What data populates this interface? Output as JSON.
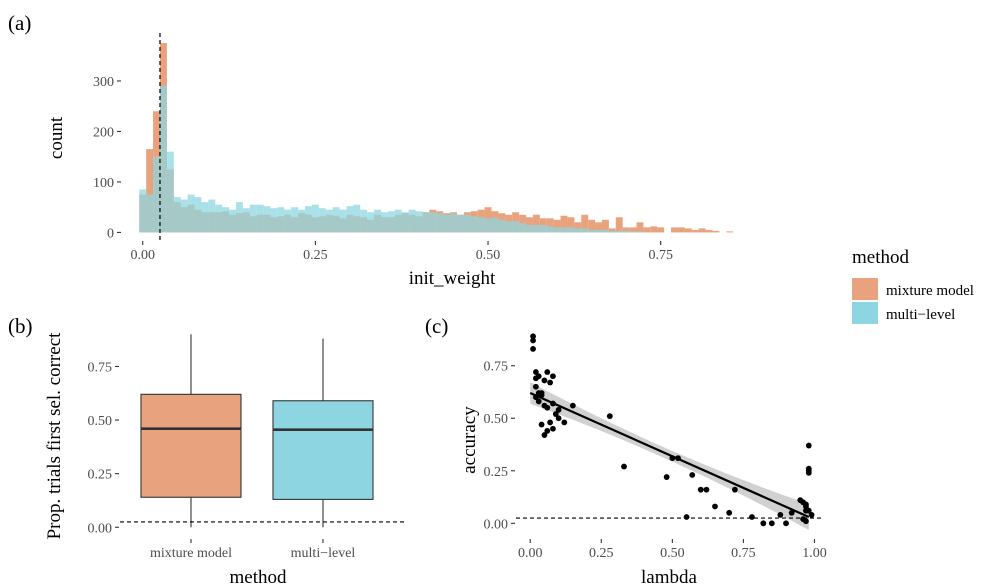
{
  "legend": {
    "title": "method",
    "items": [
      {
        "label": "mixture model",
        "color": "#E8A27E"
      },
      {
        "label": "multi−level",
        "color": "#8DD5E0"
      }
    ]
  },
  "chart_data": [
    {
      "panel": "(a)",
      "type": "histogram",
      "xlabel": "init_weight",
      "ylabel": "count",
      "xlim": [
        -0.03,
        0.93
      ],
      "ylim": [
        -15,
        395
      ],
      "xticks": [
        0.0,
        0.25,
        0.5,
        0.75
      ],
      "xtick_labels": [
        "0.00",
        "0.25",
        "0.50",
        "0.75"
      ],
      "yticks": [
        0,
        100,
        200,
        300
      ],
      "ytick_labels": [
        "0",
        "100",
        "200",
        "300"
      ],
      "bin_start": -0.005,
      "bin_width": 0.01,
      "reference_line_x": 0.025,
      "series": [
        {
          "name": "mixture model",
          "values": [
            75,
            165,
            240,
            375,
            125,
            60,
            50,
            55,
            45,
            40,
            40,
            40,
            42,
            35,
            38,
            40,
            32,
            35,
            35,
            30,
            32,
            35,
            30,
            38,
            35,
            30,
            32,
            35,
            33,
            28,
            35,
            32,
            30,
            25,
            35,
            30,
            30,
            35,
            38,
            35,
            32,
            40,
            45,
            42,
            38,
            40,
            35,
            40,
            42,
            45,
            50,
            42,
            38,
            35,
            40,
            35,
            30,
            35,
            28,
            28,
            25,
            33,
            30,
            20,
            35,
            25,
            20,
            25,
            8,
            30,
            10,
            10,
            20,
            10,
            12,
            10,
            0,
            10,
            10,
            8,
            5,
            8,
            5,
            3,
            0,
            2,
            0,
            0,
            0,
            0,
            0,
            0,
            0,
            0
          ]
        },
        {
          "name": "multi−level",
          "values": [
            85,
            75,
            150,
            290,
            160,
            70,
            65,
            75,
            70,
            60,
            65,
            55,
            50,
            45,
            60,
            48,
            55,
            55,
            52,
            48,
            50,
            45,
            50,
            45,
            52,
            55,
            48,
            45,
            50,
            45,
            52,
            55,
            45,
            40,
            45,
            40,
            42,
            45,
            40,
            45,
            42,
            40,
            40,
            38,
            35,
            38,
            35,
            35,
            32,
            30,
            28,
            30,
            25,
            22,
            22,
            18,
            15,
            15,
            15,
            12,
            10,
            10,
            10,
            8,
            8,
            5,
            5,
            5,
            3,
            3,
            3,
            2,
            2,
            0,
            0,
            0,
            0,
            0,
            0,
            0,
            0,
            0,
            0,
            0,
            0,
            0,
            0,
            0,
            0,
            0,
            0,
            0,
            0,
            0
          ]
        }
      ]
    },
    {
      "panel": "(b)",
      "type": "boxplot",
      "xlabel": "method",
      "ylabel": "Prop. trials first sel. correct",
      "ylim": [
        -0.05,
        0.92
      ],
      "yticks": [
        0.0,
        0.25,
        0.5,
        0.75
      ],
      "ytick_labels": [
        "0.00",
        "0.25",
        "0.50",
        "0.75"
      ],
      "categories": [
        "mixture model",
        "multi−level"
      ],
      "boxes": [
        {
          "name": "mixture model",
          "min": 0.0,
          "q1": 0.14,
          "median": 0.46,
          "q3": 0.62,
          "max": 0.9
        },
        {
          "name": "multi−level",
          "min": 0.0,
          "q1": 0.13,
          "median": 0.455,
          "q3": 0.59,
          "max": 0.88
        }
      ],
      "reference_line_y": 0.025
    },
    {
      "panel": "(c)",
      "type": "scatter",
      "xlabel": "lambda",
      "ylabel": "accuracy",
      "xlim": [
        -0.05,
        1.03
      ],
      "ylim": [
        -0.07,
        0.92
      ],
      "xticks": [
        0.0,
        0.25,
        0.5,
        0.75,
        1.0
      ],
      "xtick_labels": [
        "0.00",
        "0.25",
        "0.50",
        "0.75",
        "1.00"
      ],
      "yticks": [
        0.0,
        0.25,
        0.5,
        0.75
      ],
      "ytick_labels": [
        "0.00",
        "0.25",
        "0.50",
        "0.75"
      ],
      "reference_line_y": 0.025,
      "fit_line": {
        "x": [
          0.0,
          0.98
        ],
        "y": [
          0.62,
          0.03
        ]
      },
      "points": {
        "x": [
          0.01,
          0.01,
          0.01,
          0.02,
          0.02,
          0.03,
          0.02,
          0.03,
          0.04,
          0.05,
          0.06,
          0.07,
          0.04,
          0.08,
          0.02,
          0.03,
          0.05,
          0.06,
          0.07,
          0.08,
          0.1,
          0.09,
          0.12,
          0.04,
          0.05,
          0.06,
          0.08,
          0.1,
          0.15,
          0.28,
          0.33,
          0.48,
          0.52,
          0.55,
          0.5,
          0.57,
          0.6,
          0.62,
          0.65,
          0.7,
          0.72,
          0.78,
          0.82,
          0.85,
          0.88,
          0.9,
          0.92,
          0.95,
          0.96,
          0.97,
          0.97,
          0.98,
          0.98,
          0.98,
          0.97,
          0.99,
          0.98,
          0.96,
          0.97,
          0.98
        ],
        "y": [
          0.89,
          0.87,
          0.83,
          0.72,
          0.69,
          0.7,
          0.65,
          0.62,
          0.61,
          0.68,
          0.72,
          0.67,
          0.62,
          0.7,
          0.6,
          0.58,
          0.56,
          0.55,
          0.48,
          0.45,
          0.5,
          0.52,
          0.48,
          0.47,
          0.42,
          0.44,
          0.57,
          0.54,
          0.56,
          0.51,
          0.27,
          0.22,
          0.31,
          0.03,
          0.31,
          0.23,
          0.16,
          0.16,
          0.08,
          0.05,
          0.16,
          0.03,
          0.0,
          0.0,
          0.04,
          0.0,
          0.05,
          0.11,
          0.1,
          0.09,
          0.06,
          0.25,
          0.26,
          0.37,
          0.08,
          0.04,
          0.24,
          0.02,
          0.01,
          0.06
        ]
      }
    }
  ]
}
